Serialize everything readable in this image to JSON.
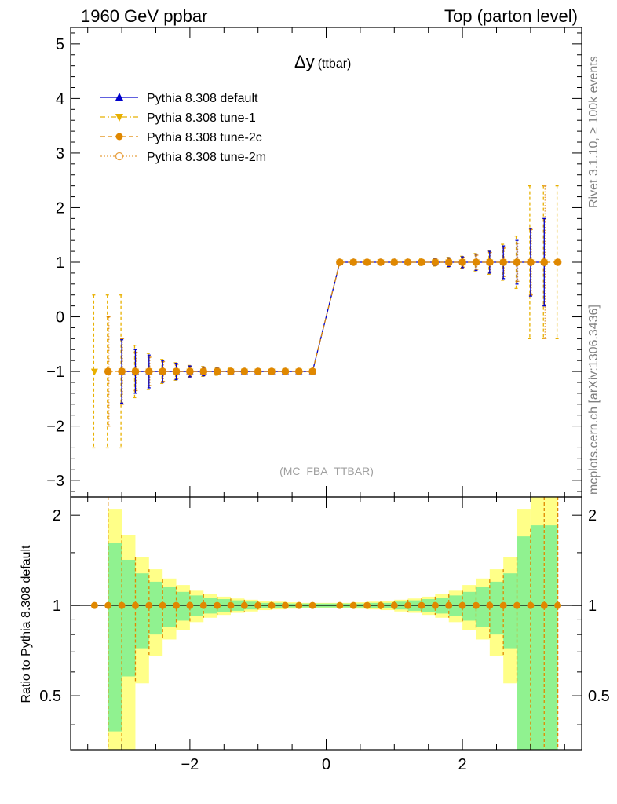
{
  "header": {
    "left": "1960 GeV ppbar",
    "right": "Top (parton level)"
  },
  "side": {
    "rivet": "Rivet 3.1.10, ≥ 100k events",
    "mcplots": "mcplots.cern.ch [arXiv:1306.3436]"
  },
  "chart_data": {
    "type": "line",
    "title": "Δy",
    "title_suffix": "(ttbar)",
    "analysis": "(MC_FBA_TTBAR)",
    "ylim": [
      -3.3,
      5.3
    ],
    "xlim": [
      -3.75,
      3.75
    ],
    "ratio_ylabel": "Ratio to Pythia 8.308 default",
    "ratio_ylim": [
      0.33,
      2.3
    ],
    "main_y_ticks": [
      "−3",
      "−2",
      "−1",
      "0",
      "1",
      "2",
      "3",
      "4",
      "5"
    ],
    "ratio_y_ticks": [
      "0.5",
      "1",
      "2"
    ],
    "x_ticks": [
      "−2",
      "0",
      "2"
    ],
    "legend": [
      "Pythia 8.308 default",
      "Pythia 8.308 tune-1",
      "Pythia 8.308 tune-2c",
      "Pythia 8.308 tune-2m"
    ],
    "colors": {
      "default": "#0000cc",
      "tune1": "#e8b000",
      "tune2c": "#e08800",
      "tune2m": "#e8a040",
      "band_inner": "#90f290",
      "band_outer": "#ffff88"
    },
    "bin_centers": [
      -3.4,
      -3.2,
      -3.0,
      -2.8,
      -2.6,
      -2.4,
      -2.2,
      -2.0,
      -1.8,
      -1.6,
      -1.4,
      -1.2,
      -1.0,
      -0.8,
      -0.6,
      -0.4,
      -0.2,
      0.2,
      0.4,
      0.6,
      0.8,
      1.0,
      1.2,
      1.4,
      1.6,
      1.8,
      2.0,
      2.2,
      2.4,
      2.6,
      2.8,
      3.0,
      3.2,
      3.4
    ],
    "series": [
      {
        "name": "Pythia 8.308 default",
        "values": [
          null,
          null,
          -1,
          -1,
          -1,
          -1,
          -1,
          -1,
          -1,
          -1,
          -1,
          -1,
          -1,
          -1,
          -1,
          -1,
          -1,
          1,
          1,
          1,
          1,
          1,
          1,
          1,
          1,
          1,
          1,
          1,
          1,
          1,
          1,
          1,
          1,
          null
        ],
        "err": [
          0,
          0,
          0.58,
          0.4,
          0.3,
          0.2,
          0.15,
          0.1,
          0.08,
          0.06,
          0.05,
          0.04,
          0.03,
          0.02,
          0.02,
          0.02,
          0.02,
          0.02,
          0.02,
          0.02,
          0.02,
          0.03,
          0.04,
          0.05,
          0.06,
          0.08,
          0.1,
          0.15,
          0.2,
          0.3,
          0.4,
          0.62,
          0.8,
          0
        ]
      },
      {
        "name": "Pythia 8.308 tune-1",
        "values": [
          -1,
          -1,
          -1,
          -1,
          -1,
          -1,
          -1,
          -1,
          -1,
          -1,
          -1,
          -1,
          -1,
          -1,
          -1,
          -1,
          -1,
          1,
          1,
          1,
          1,
          1,
          1,
          1,
          1,
          1,
          1,
          1,
          1,
          1,
          1,
          1,
          1,
          1
        ],
        "err": [
          1.4,
          1.4,
          1.4,
          0.48,
          0.33,
          0.22,
          0.16,
          0.11,
          0.09,
          0.07,
          0.06,
          0.05,
          0.04,
          0.03,
          0.03,
          0.03,
          0.03,
          0.03,
          0.03,
          0.03,
          0.03,
          0.04,
          0.05,
          0.06,
          0.07,
          0.09,
          0.11,
          0.16,
          0.22,
          0.33,
          0.48,
          1.4,
          1.4,
          1.4
        ]
      },
      {
        "name": "Pythia 8.308 tune-2c",
        "values": [
          null,
          -1,
          -1,
          -1,
          -1,
          -1,
          -1,
          -1,
          -1,
          -1,
          -1,
          -1,
          -1,
          -1,
          -1,
          -1,
          -1,
          1,
          1,
          1,
          1,
          1,
          1,
          1,
          1,
          1,
          1,
          1,
          1,
          1,
          1,
          1,
          1,
          1
        ],
        "err": [
          0,
          1.0,
          0.6,
          0.35,
          0.26,
          0.18,
          0.13,
          0.09,
          0.07,
          0.06,
          0.05,
          0.04,
          0.03,
          0.03,
          0.02,
          0.02,
          0.02,
          0.02,
          0.02,
          0.02,
          0.03,
          0.03,
          0.04,
          0.05,
          0.06,
          0.07,
          0.09,
          0.13,
          0.18,
          0.26,
          0.35,
          0.6,
          0.8,
          0
        ]
      },
      {
        "name": "Pythia 8.308 tune-2m",
        "values": [
          null,
          -1,
          -1,
          -1,
          -1,
          -1,
          -1,
          -1,
          -1,
          -1,
          -1,
          -1,
          -1,
          -1,
          -1,
          -1,
          -1,
          1,
          1,
          1,
          1,
          1,
          1,
          1,
          1,
          1,
          1,
          1,
          1,
          1,
          1,
          1,
          1,
          1
        ],
        "err": [
          0,
          1.0,
          0.6,
          0.35,
          0.26,
          0.18,
          0.13,
          0.09,
          0.07,
          0.06,
          0.05,
          0.04,
          0.03,
          0.03,
          0.02,
          0.02,
          0.02,
          0.02,
          0.02,
          0.02,
          0.03,
          0.03,
          0.04,
          0.05,
          0.06,
          0.07,
          0.09,
          0.13,
          0.18,
          0.26,
          0.35,
          0.6,
          1.4,
          0
        ]
      }
    ],
    "ratio_band": {
      "x_edges": [
        -3.2,
        -3.0,
        -2.8,
        -2.6,
        -2.4,
        -2.2,
        -2.0,
        -1.8,
        -1.6,
        -1.4,
        -1.2,
        -1.0,
        -0.8,
        -0.6,
        -0.4,
        -0.2,
        0.0,
        0.2,
        0.4,
        0.6,
        0.8,
        1.0,
        1.2,
        1.4,
        1.6,
        1.8,
        2.0,
        2.2,
        2.4,
        2.6,
        2.8,
        3.0,
        3.2,
        3.4
      ],
      "inner_err": [
        0.62,
        0.42,
        0.28,
        0.2,
        0.15,
        0.11,
        0.08,
        0.06,
        0.05,
        0.04,
        0.03,
        0.02,
        0.02,
        0.015,
        0.015,
        0.015,
        0.015,
        0.015,
        0.015,
        0.02,
        0.02,
        0.03,
        0.04,
        0.05,
        0.06,
        0.08,
        0.11,
        0.15,
        0.2,
        0.28,
        0.7,
        0.85,
        0.85
      ],
      "outer_err": [
        1.1,
        0.72,
        0.45,
        0.32,
        0.23,
        0.17,
        0.12,
        0.09,
        0.07,
        0.055,
        0.045,
        0.035,
        0.03,
        0.025,
        0.02,
        0.02,
        0.02,
        0.02,
        0.025,
        0.03,
        0.035,
        0.045,
        0.055,
        0.07,
        0.09,
        0.12,
        0.17,
        0.23,
        0.32,
        0.45,
        1.1,
        1.3,
        1.4
      ]
    },
    "ratio_points_err": [
      0,
      1.3,
      0.72,
      0.45,
      0.32,
      0.22,
      0.16,
      0.12,
      0.09,
      0.07,
      0.055,
      0.045,
      0.035,
      0.03,
      0.025,
      0.02,
      0.02,
      0.02,
      0.02,
      0.025,
      0.03,
      0.035,
      0.045,
      0.055,
      0.07,
      0.09,
      0.12,
      0.16,
      0.22,
      0.32,
      0.45,
      0.8,
      1.3,
      1.4
    ]
  }
}
